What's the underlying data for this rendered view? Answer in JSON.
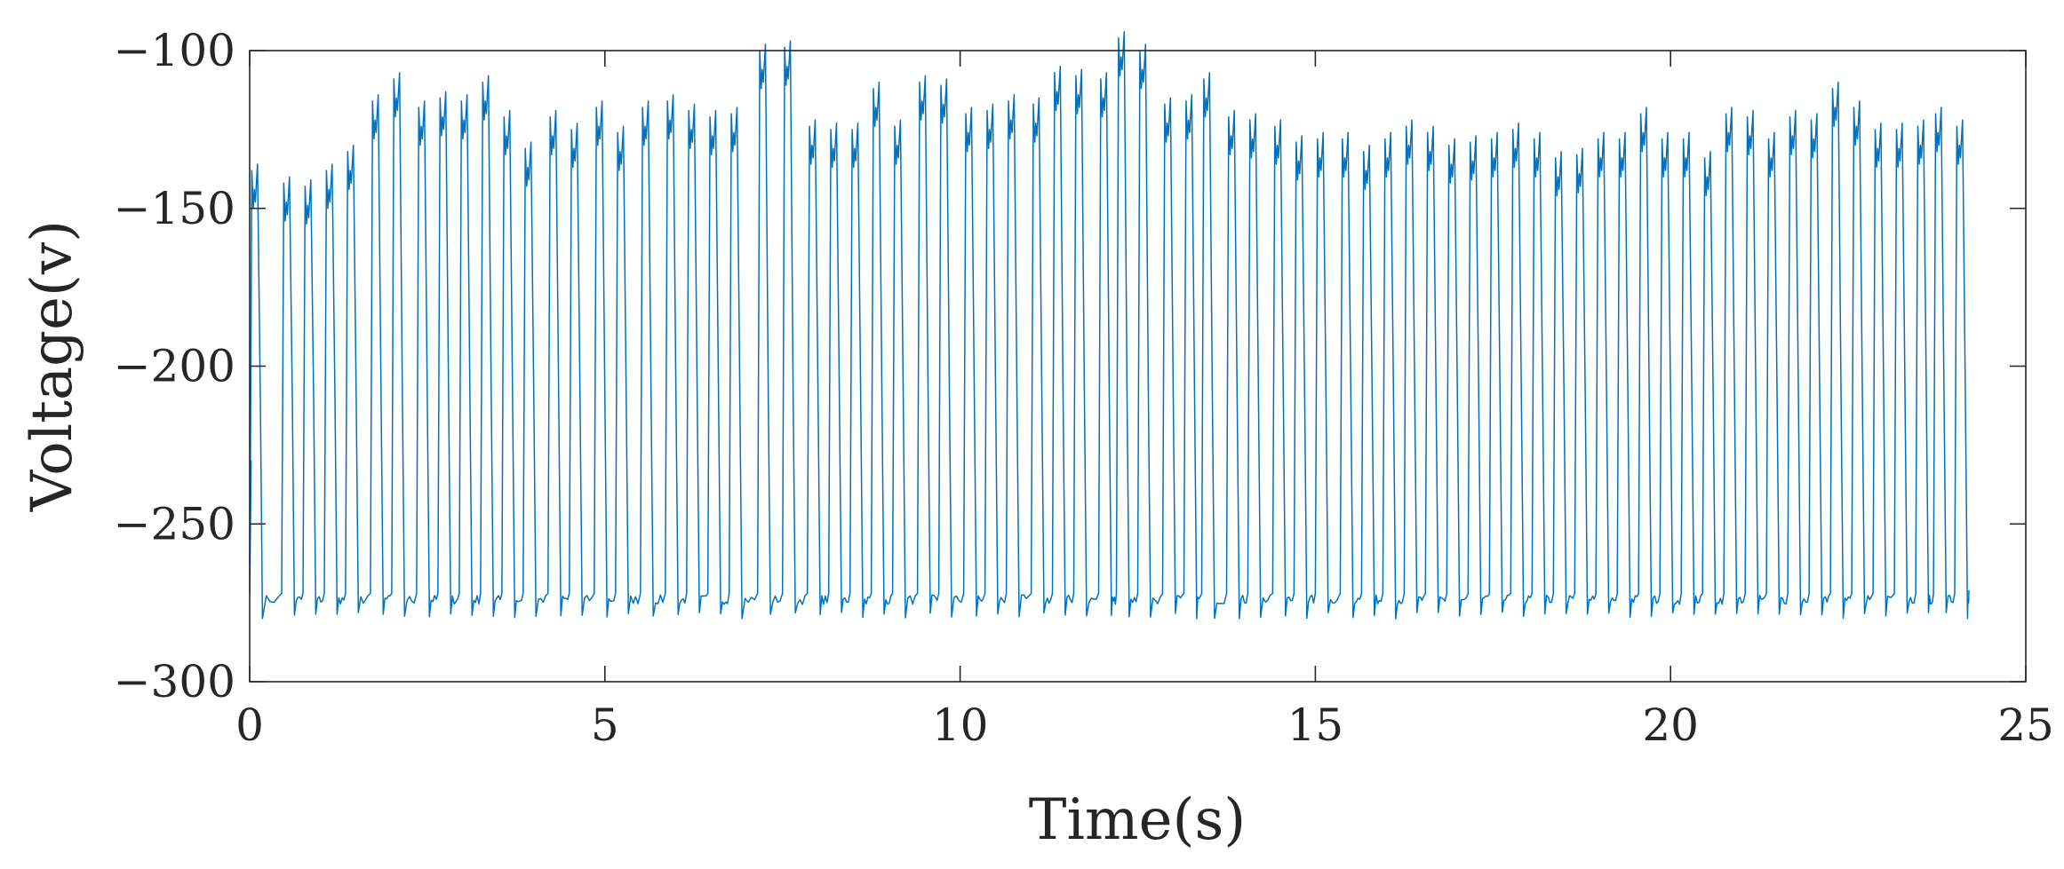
{
  "chart_data": {
    "type": "line",
    "title": "",
    "xlabel": "Time(s)",
    "ylabel": "Voltage(v)",
    "xlim": [
      0,
      25
    ],
    "ylim": [
      -300,
      -100
    ],
    "xticks": [
      0,
      5,
      10,
      15,
      20,
      25
    ],
    "yticks": [
      -100,
      -150,
      -200,
      -250,
      -300
    ],
    "xtick_labels": [
      "0",
      "5",
      "10",
      "15",
      "20",
      "25"
    ],
    "ytick_labels": [
      "−100",
      "−150",
      "−200",
      "−250",
      "−300"
    ],
    "grid": false,
    "legend": "none",
    "line_color": "#0072BD",
    "series": [
      {
        "baseline": -274,
        "trough_min": -279,
        "beats": [
          {
            "t": 0.05,
            "peak": -150
          },
          {
            "t": 0.5,
            "peak": -154
          },
          {
            "t": 0.8,
            "peak": -155
          },
          {
            "t": 1.1,
            "peak": -150
          },
          {
            "t": 1.4,
            "peak": -144
          },
          {
            "t": 1.75,
            "peak": -128
          },
          {
            "t": 2.05,
            "peak": -121
          },
          {
            "t": 2.4,
            "peak": -130
          },
          {
            "t": 2.7,
            "peak": -127
          },
          {
            "t": 3.0,
            "peak": -128
          },
          {
            "t": 3.3,
            "peak": -122
          },
          {
            "t": 3.6,
            "peak": -133
          },
          {
            "t": 3.9,
            "peak": -143
          },
          {
            "t": 4.25,
            "peak": -133
          },
          {
            "t": 4.55,
            "peak": -137
          },
          {
            "t": 4.9,
            "peak": -130
          },
          {
            "t": 5.2,
            "peak": -138
          },
          {
            "t": 5.55,
            "peak": -130
          },
          {
            "t": 5.9,
            "peak": -128
          },
          {
            "t": 6.2,
            "peak": -131
          },
          {
            "t": 6.5,
            "peak": -133
          },
          {
            "t": 6.8,
            "peak": -132
          },
          {
            "t": 7.2,
            "peak": -112
          },
          {
            "t": 7.55,
            "peak": -111
          },
          {
            "t": 7.9,
            "peak": -136
          },
          {
            "t": 8.2,
            "peak": -137
          },
          {
            "t": 8.5,
            "peak": -137
          },
          {
            "t": 8.8,
            "peak": -124
          },
          {
            "t": 9.1,
            "peak": -136
          },
          {
            "t": 9.45,
            "peak": -122
          },
          {
            "t": 9.75,
            "peak": -123
          },
          {
            "t": 10.1,
            "peak": -132
          },
          {
            "t": 10.4,
            "peak": -131
          },
          {
            "t": 10.7,
            "peak": -128
          },
          {
            "t": 11.05,
            "peak": -129
          },
          {
            "t": 11.35,
            "peak": -119
          },
          {
            "t": 11.65,
            "peak": -120
          },
          {
            "t": 12.0,
            "peak": -121
          },
          {
            "t": 12.25,
            "peak": -108
          },
          {
            "t": 12.55,
            "peak": -112
          },
          {
            "t": 12.9,
            "peak": -129
          },
          {
            "t": 13.2,
            "peak": -128
          },
          {
            "t": 13.45,
            "peak": -121
          },
          {
            "t": 13.8,
            "peak": -133
          },
          {
            "t": 14.1,
            "peak": -134
          },
          {
            "t": 14.45,
            "peak": -136
          },
          {
            "t": 14.75,
            "peak": -141
          },
          {
            "t": 15.05,
            "peak": -140
          },
          {
            "t": 15.4,
            "peak": -140
          },
          {
            "t": 15.7,
            "peak": -144
          },
          {
            "t": 16.0,
            "peak": -140
          },
          {
            "t": 16.3,
            "peak": -136
          },
          {
            "t": 16.6,
            "peak": -138
          },
          {
            "t": 16.9,
            "peak": -142
          },
          {
            "t": 17.2,
            "peak": -141
          },
          {
            "t": 17.5,
            "peak": -140
          },
          {
            "t": 17.8,
            "peak": -137
          },
          {
            "t": 18.1,
            "peak": -140
          },
          {
            "t": 18.4,
            "peak": -146
          },
          {
            "t": 18.7,
            "peak": -145
          },
          {
            "t": 19.0,
            "peak": -140
          },
          {
            "t": 19.3,
            "peak": -140
          },
          {
            "t": 19.6,
            "peak": -132
          },
          {
            "t": 19.9,
            "peak": -140
          },
          {
            "t": 20.2,
            "peak": -140
          },
          {
            "t": 20.5,
            "peak": -146
          },
          {
            "t": 20.8,
            "peak": -132
          },
          {
            "t": 21.1,
            "peak": -133
          },
          {
            "t": 21.4,
            "peak": -140
          },
          {
            "t": 21.7,
            "peak": -133
          },
          {
            "t": 22.0,
            "peak": -134
          },
          {
            "t": 22.3,
            "peak": -124
          },
          {
            "t": 22.6,
            "peak": -130
          },
          {
            "t": 22.9,
            "peak": -137
          },
          {
            "t": 23.2,
            "peak": -137
          },
          {
            "t": 23.5,
            "peak": -136
          },
          {
            "t": 23.75,
            "peak": -132
          },
          {
            "t": 24.05,
            "peak": -136
          }
        ],
        "end_time": 24.2,
        "end_value": -271
      }
    ]
  }
}
